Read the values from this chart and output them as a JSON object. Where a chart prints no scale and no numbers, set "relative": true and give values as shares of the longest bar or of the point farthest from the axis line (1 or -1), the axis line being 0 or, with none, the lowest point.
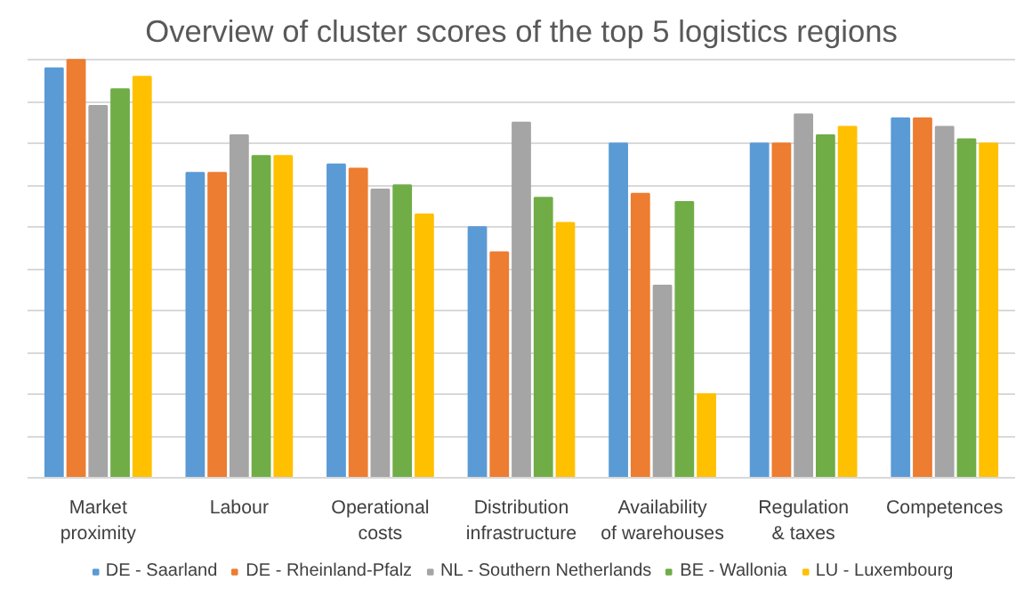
{
  "chart_data": {
    "type": "bar",
    "title": "Overview of cluster scores of the top 5 logistics regions",
    "relative": true,
    "grid": "y",
    "legend": "bottom",
    "categories": [
      "Market proximity",
      "Labour",
      "Operational costs",
      "Distribution infrastructure",
      "Availability of warehouses",
      "Regulation & taxes",
      "Competences"
    ],
    "series": [
      {
        "name": "DE - Saarland",
        "color": "#5b9bd5",
        "values": [
          0.98,
          0.73,
          0.75,
          0.6,
          0.8,
          0.8,
          0.86
        ]
      },
      {
        "name": "DE - Rheinland-Pfalz",
        "color": "#ed7d31",
        "values": [
          1.0,
          0.73,
          0.74,
          0.54,
          0.68,
          0.8,
          0.86
        ]
      },
      {
        "name": "NL - Southern Netherlands",
        "color": "#a5a5a5",
        "values": [
          0.89,
          0.82,
          0.69,
          0.85,
          0.46,
          0.87,
          0.84
        ]
      },
      {
        "name": "BE - Wallonia",
        "color": "#70ad47",
        "values": [
          0.93,
          0.77,
          0.7,
          0.67,
          0.66,
          0.82,
          0.81
        ]
      },
      {
        "name": "LU - Luxembourg",
        "color": "#ffc000",
        "values": [
          0.96,
          0.77,
          0.63,
          0.61,
          0.2,
          0.84,
          0.8
        ]
      }
    ]
  }
}
